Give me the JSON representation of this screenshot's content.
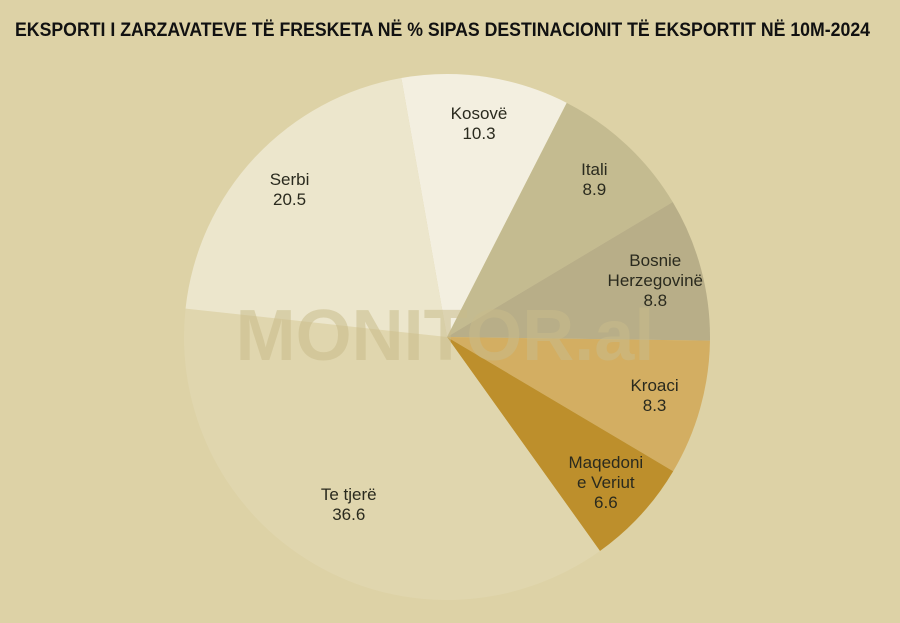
{
  "chart_data": {
    "type": "pie",
    "title": "EKSPORTI I ZARZAVATEVE TË FRESKETA NË % SIPAS DESTINACIONIT TË EKSPORTIT NË 10M-2024",
    "watermark": "MONITOR.al",
    "categories": [
      "Kosovë",
      "Itali",
      "Bosnie\nHerzegovinë",
      "Kroaci",
      "Maqedoni\ne Veriut",
      "Te tjerë",
      "Serbi"
    ],
    "values": [
      10.3,
      8.9,
      8.8,
      8.3,
      6.6,
      36.6,
      20.5
    ],
    "colors": [
      "#f3efe0",
      "#c4bb90",
      "#b8ae88",
      "#d3ae62",
      "#bd8f2c",
      "#e0d6ae",
      "#ece6cc"
    ]
  }
}
